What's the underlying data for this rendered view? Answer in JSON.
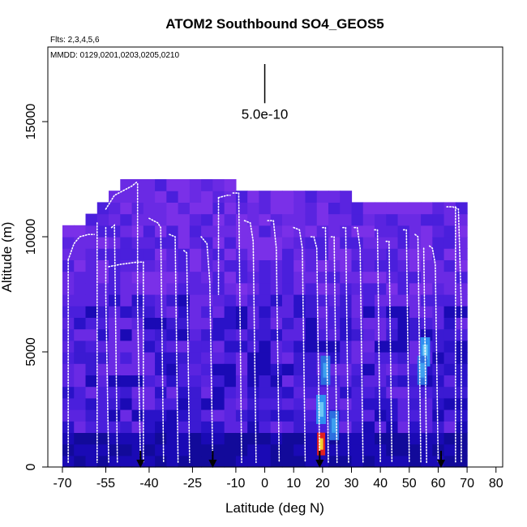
{
  "chart_data": {
    "type": "heatmap",
    "title": "ATOM2 Southbound SO4_GEOS5",
    "flights_label": "Flts: 2,3,4,5,6",
    "dates_label": "MMDD: 0129,0201,0203,0205,0210",
    "xlabel": "Latitude (deg N)",
    "ylabel": "Altitude (m)",
    "xlim": [
      -70,
      85
    ],
    "ylim": [
      0,
      17500
    ],
    "x_ticks": [
      -70,
      -55,
      -40,
      -25,
      -10,
      0,
      10,
      20,
      30,
      40,
      50,
      60,
      70,
      80
    ],
    "x_tick_labels": [
      "-70",
      "-55",
      "-40",
      "-25",
      "-10",
      "0",
      "10",
      "20",
      "30",
      "40",
      "50",
      "60",
      "70",
      "80"
    ],
    "y_ticks": [
      0,
      5000,
      10000,
      15000
    ],
    "y_tick_labels": [
      "0",
      "5000",
      "10000",
      "15000"
    ],
    "scale_bar": {
      "label": "5.0e-10",
      "x": 0,
      "y_top": 17500,
      "y_bottom": 15800
    },
    "arrows_lat": [
      -43,
      -18,
      19,
      61
    ],
    "columns": [
      {
        "lat": -68,
        "top": 10500
      },
      {
        "lat": -64,
        "top": 10500
      },
      {
        "lat": -60,
        "top": 11000
      },
      {
        "lat": -56,
        "top": 11500
      },
      {
        "lat": -52,
        "top": 12000
      },
      {
        "lat": -48,
        "top": 12400
      },
      {
        "lat": -44,
        "top": 12400
      },
      {
        "lat": -40,
        "top": 12400
      },
      {
        "lat": -36,
        "top": 12400
      },
      {
        "lat": -32,
        "top": 12400
      },
      {
        "lat": -28,
        "top": 12400
      },
      {
        "lat": -24,
        "top": 12400
      },
      {
        "lat": -20,
        "top": 12400
      },
      {
        "lat": -16,
        "top": 12400
      },
      {
        "lat": -12,
        "top": 12400
      },
      {
        "lat": -8,
        "top": 12000
      },
      {
        "lat": -4,
        "top": 12000
      },
      {
        "lat": 0,
        "top": 12000
      },
      {
        "lat": 4,
        "top": 12000
      },
      {
        "lat": 8,
        "top": 12000
      },
      {
        "lat": 12,
        "top": 12000
      },
      {
        "lat": 16,
        "top": 12000
      },
      {
        "lat": 20,
        "top": 12000
      },
      {
        "lat": 24,
        "top": 12000
      },
      {
        "lat": 28,
        "top": 12000
      },
      {
        "lat": 32,
        "top": 11500
      },
      {
        "lat": 36,
        "top": 11500
      },
      {
        "lat": 40,
        "top": 11500
      },
      {
        "lat": 44,
        "top": 11500
      },
      {
        "lat": 48,
        "top": 11500
      },
      {
        "lat": 52,
        "top": 11500
      },
      {
        "lat": 56,
        "top": 11500
      },
      {
        "lat": 60,
        "top": 11500
      },
      {
        "lat": 64,
        "top": 11500
      },
      {
        "lat": 68,
        "top": 11500
      }
    ],
    "hotspots": [
      {
        "lat": 19.5,
        "alt": 1000,
        "level": 5
      },
      {
        "lat": 19.5,
        "alt": 2500,
        "level": 3
      },
      {
        "lat": 21,
        "alt": 4200,
        "level": 2
      },
      {
        "lat": 55.5,
        "alt": 5000,
        "level": 3
      },
      {
        "lat": 54.5,
        "alt": 4200,
        "level": 2
      },
      {
        "lat": 24,
        "alt": 1800,
        "level": 2
      }
    ],
    "flight_tracks": [
      {
        "x": [
          -68,
          -66,
          -64,
          -61,
          -59
        ],
        "y": [
          9000,
          9700,
          10000,
          10100,
          10100
        ]
      },
      {
        "x": [
          -68,
          -68
        ],
        "y": [
          9000,
          200
        ]
      },
      {
        "x": [
          -58,
          -58
        ],
        "y": [
          10600,
          200
        ]
      },
      {
        "x": [
          -55,
          -55,
          -54
        ],
        "y": [
          10400,
          7500,
          200
        ]
      },
      {
        "x": [
          -53,
          -52,
          -51
        ],
        "y": [
          10400,
          10500,
          200
        ]
      },
      {
        "x": [
          -55,
          -52,
          -46,
          -44
        ],
        "y": [
          11200,
          11800,
          12200,
          12400
        ]
      },
      {
        "x": [
          -54,
          -50,
          -44,
          -42
        ],
        "y": [
          8700,
          8800,
          8900,
          8900
        ]
      },
      {
        "x": [
          -44,
          -44,
          -43
        ],
        "y": [
          12300,
          7000,
          200
        ]
      },
      {
        "x": [
          -42,
          -42
        ],
        "y": [
          8900,
          200
        ]
      },
      {
        "x": [
          -40,
          -37,
          -36,
          -35
        ],
        "y": [
          10800,
          10600,
          10400,
          200
        ]
      },
      {
        "x": [
          -33,
          -31,
          -30
        ],
        "y": [
          10100,
          10000,
          200
        ]
      },
      {
        "x": [
          -28,
          -27,
          -26
        ],
        "y": [
          9400,
          9300,
          200
        ]
      },
      {
        "x": [
          -22,
          -20,
          -19,
          -18
        ],
        "y": [
          10000,
          9700,
          8000,
          200
        ]
      },
      {
        "x": [
          -16,
          -16
        ],
        "y": [
          11700,
          7500
        ]
      },
      {
        "x": [
          -16,
          -13,
          -12
        ],
        "y": [
          11700,
          11800,
          11800
        ]
      },
      {
        "x": [
          -11,
          -9,
          -8
        ],
        "y": [
          11900,
          11900,
          200
        ]
      },
      {
        "x": [
          -7,
          -5,
          -4,
          -3
        ],
        "y": [
          10700,
          10600,
          9800,
          200
        ]
      },
      {
        "x": [
          1,
          3,
          4,
          5
        ],
        "y": [
          10700,
          10700,
          9500,
          200
        ]
      },
      {
        "x": [
          10,
          12,
          13,
          14
        ],
        "y": [
          10400,
          10300,
          9500,
          200
        ]
      },
      {
        "x": [
          16,
          17,
          18,
          19
        ],
        "y": [
          10000,
          10000,
          9500,
          200
        ]
      },
      {
        "x": [
          20,
          21,
          22
        ],
        "y": [
          10400,
          10400,
          200
        ]
      },
      {
        "x": [
          23,
          24,
          25
        ],
        "y": [
          10000,
          10000,
          200
        ]
      },
      {
        "x": [
          27,
          28,
          29
        ],
        "y": [
          10400,
          10400,
          200
        ]
      },
      {
        "x": [
          31,
          32,
          33,
          34
        ],
        "y": [
          10400,
          10400,
          9500,
          200
        ]
      },
      {
        "x": [
          38,
          39,
          40
        ],
        "y": [
          10300,
          10300,
          200
        ]
      },
      {
        "x": [
          42,
          43,
          44
        ],
        "y": [
          9800,
          9800,
          200
        ]
      },
      {
        "x": [
          48,
          49,
          50
        ],
        "y": [
          10300,
          10300,
          200
        ]
      },
      {
        "x": [
          52,
          53,
          54
        ],
        "y": [
          10100,
          10000,
          200
        ]
      },
      {
        "x": [
          55,
          56
        ],
        "y": [
          9500,
          200
        ]
      },
      {
        "x": [
          57,
          58,
          59,
          60
        ],
        "y": [
          9600,
          9500,
          8800,
          200
        ]
      },
      {
        "x": [
          63,
          65,
          67,
          68
        ],
        "y": [
          11300,
          11300,
          11200,
          7000
        ]
      },
      {
        "x": [
          68,
          68
        ],
        "y": [
          7000,
          200
        ]
      },
      {
        "x": [
          66,
          66
        ],
        "y": [
          11300,
          200
        ]
      }
    ]
  }
}
